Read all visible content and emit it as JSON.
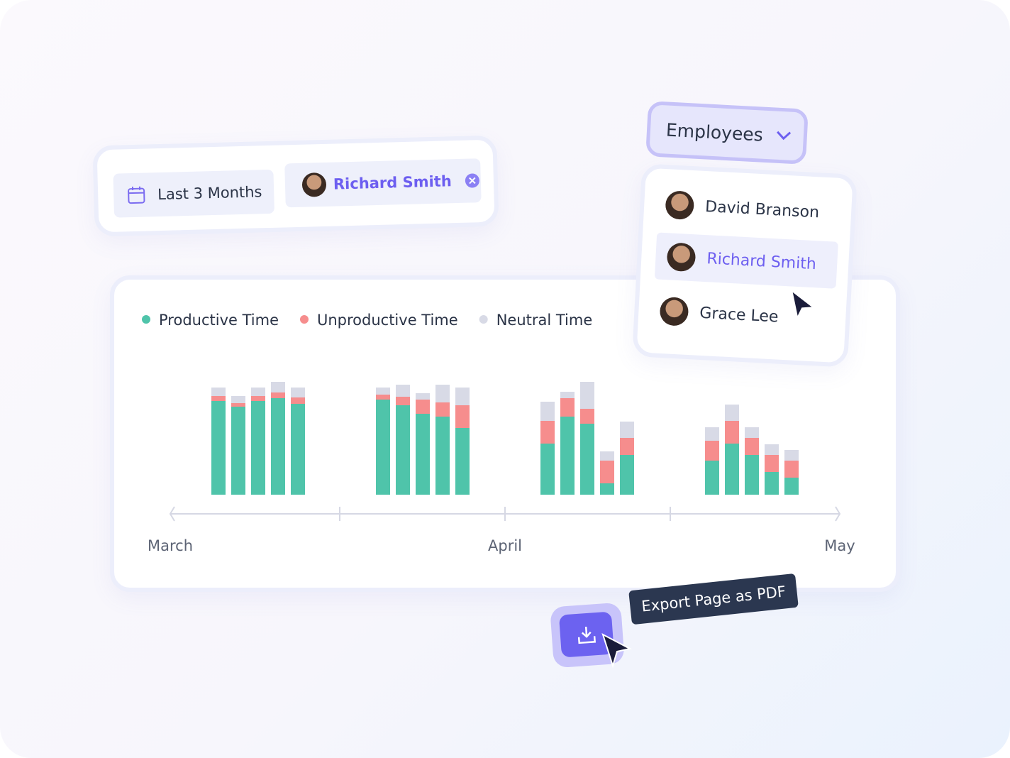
{
  "filters": {
    "date_range": "Last 3 Months",
    "employee": "Richard Smith"
  },
  "dropdown": {
    "label": "Employees",
    "items": [
      "David Branson",
      "Richard Smith",
      "Grace Lee"
    ]
  },
  "export_tooltip": "Export Page as PDF",
  "chart_data": {
    "type": "stacked-bar",
    "categories": [
      null,
      null,
      null,
      null,
      null,
      null,
      null,
      null,
      null,
      null,
      null,
      null,
      null,
      null,
      null,
      null,
      null,
      null,
      null,
      null
    ],
    "axis_labels": [
      "March",
      "April",
      "May"
    ],
    "series": [
      {
        "name": "Productive Time",
        "color": "#4fc4aa",
        "values": [
          132,
          124,
          132,
          136,
          128,
          134,
          126,
          114,
          110,
          94,
          72,
          110,
          100,
          16,
          56,
          48,
          72,
          56,
          32,
          24
        ]
      },
      {
        "name": "Unproductive Time",
        "color": "#f68d8d",
        "values": [
          7,
          5,
          7,
          8,
          9,
          7,
          12,
          20,
          20,
          32,
          32,
          26,
          21,
          32,
          24,
          28,
          32,
          24,
          24,
          24
        ]
      },
      {
        "name": "Neutral Time",
        "color": "#d8dae6",
        "values": [
          12,
          10,
          12,
          15,
          14,
          10,
          17,
          9,
          25,
          25,
          27,
          9,
          38,
          13,
          23,
          19,
          23,
          15,
          15,
          15
        ]
      }
    ]
  }
}
